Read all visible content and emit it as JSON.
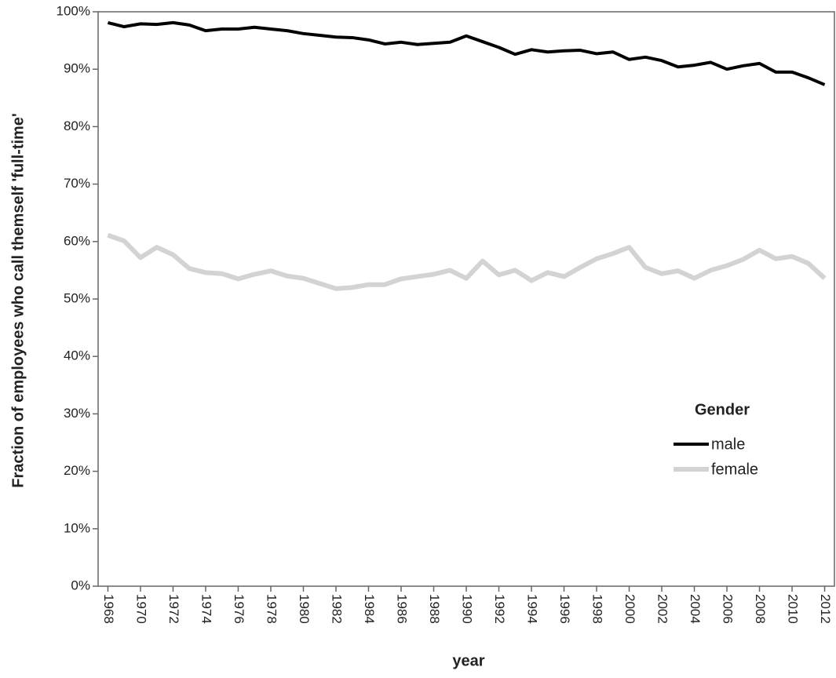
{
  "chart_data": {
    "type": "line",
    "y_label": "Fraction of employees who call themself 'full-time'",
    "x_label": "year",
    "legend_title": "Gender",
    "x": [
      1968,
      1969,
      1970,
      1971,
      1972,
      1973,
      1974,
      1975,
      1976,
      1977,
      1978,
      1979,
      1980,
      1981,
      1982,
      1983,
      1984,
      1985,
      1986,
      1987,
      1988,
      1989,
      1990,
      1991,
      1992,
      1993,
      1994,
      1995,
      1996,
      1997,
      1998,
      1999,
      2000,
      2001,
      2002,
      2003,
      2004,
      2005,
      2006,
      2007,
      2008,
      2009,
      2010,
      2011,
      2012
    ],
    "series": [
      {
        "name": "male",
        "color": "#000000",
        "values": [
          98.1,
          97.4,
          97.9,
          97.8,
          98.1,
          97.7,
          96.7,
          97.0,
          97.0,
          97.3,
          97.0,
          96.7,
          96.2,
          95.9,
          95.6,
          95.5,
          95.1,
          94.4,
          94.7,
          94.3,
          94.5,
          94.7,
          95.8,
          94.8,
          93.8,
          92.6,
          93.4,
          93.0,
          93.2,
          93.3,
          92.7,
          93.0,
          91.7,
          92.1,
          91.5,
          90.4,
          90.7,
          91.2,
          90.0,
          90.6,
          91.0,
          89.5,
          89.5,
          88.5,
          87.3
        ]
      },
      {
        "name": "female",
        "color": "#d3d3d3",
        "values": [
          61.1,
          60.1,
          57.2,
          59.0,
          57.7,
          55.3,
          54.6,
          54.4,
          53.5,
          54.3,
          54.9,
          54.0,
          53.6,
          52.7,
          51.8,
          52.0,
          52.5,
          52.5,
          53.5,
          53.9,
          54.3,
          55.0,
          53.6,
          56.6,
          54.2,
          55.0,
          53.2,
          54.6,
          53.9,
          55.5,
          57.0,
          57.9,
          59.0,
          55.5,
          54.4,
          54.9,
          53.6,
          55.0,
          55.8,
          56.9,
          58.5,
          57.0,
          57.4,
          56.2,
          53.6
        ]
      }
    ],
    "xlim": [
      1967.4,
      2012.6
    ],
    "xticks": [
      1968,
      1970,
      1972,
      1974,
      1976,
      1978,
      1980,
      1982,
      1984,
      1986,
      1988,
      1990,
      1992,
      1994,
      1996,
      1998,
      2000,
      2002,
      2004,
      2006,
      2008,
      2010,
      2012
    ],
    "ylim": [
      0,
      100
    ],
    "yticks": [
      {
        "value": 0,
        "label": "0%"
      },
      {
        "value": 10,
        "label": "10%"
      },
      {
        "value": 20,
        "label": "20%"
      },
      {
        "value": 30,
        "label": "30%"
      },
      {
        "value": 40,
        "label": "40%"
      },
      {
        "value": 50,
        "label": "50%"
      },
      {
        "value": 60,
        "label": "60%"
      },
      {
        "value": 70,
        "label": "70%"
      },
      {
        "value": 80,
        "label": "80%"
      },
      {
        "value": 90,
        "label": "90%"
      },
      {
        "value": 100,
        "label": "100%"
      }
    ],
    "grid": false
  }
}
